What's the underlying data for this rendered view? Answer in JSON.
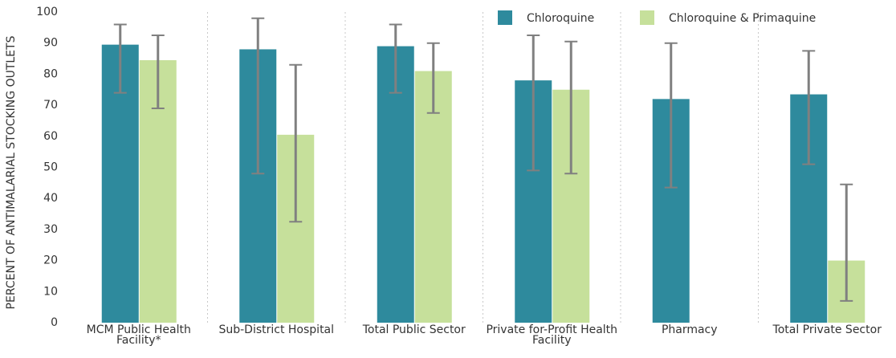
{
  "chart_data": {
    "type": "bar",
    "y_label": "PERCENT OF ANTIMALARIAL STOCKING OUTLETS",
    "categories": [
      "MCM Public Health Facility*",
      "Sub-District Hospital",
      "Total Public Sector",
      "Private for-Profit Health Facility",
      "Pharmacy",
      "Total Private Sector"
    ],
    "series": [
      {
        "name": "Chloroquine",
        "color": "#2e8a9d",
        "values": [
          89.5,
          88,
          89,
          78,
          72,
          73.5
        ],
        "lower": [
          74,
          48,
          74,
          49,
          43.5,
          51
        ],
        "upper": [
          96,
          98,
          96,
          92.5,
          90,
          87.5
        ]
      },
      {
        "name": "Chloroquine & Primaquine",
        "color": "#c6e09b",
        "values": [
          84.5,
          60.5,
          81,
          75,
          null,
          20
        ],
        "lower": [
          69,
          32.5,
          67.5,
          48,
          null,
          7
        ],
        "upper": [
          92.5,
          83,
          90,
          90.5,
          null,
          44.5
        ]
      }
    ],
    "ylim": [
      0,
      100
    ],
    "yticks": [
      0,
      10,
      20,
      30,
      40,
      50,
      60,
      70,
      80,
      90,
      100
    ],
    "error_bar_color": "#808080",
    "legend": "top-right"
  }
}
